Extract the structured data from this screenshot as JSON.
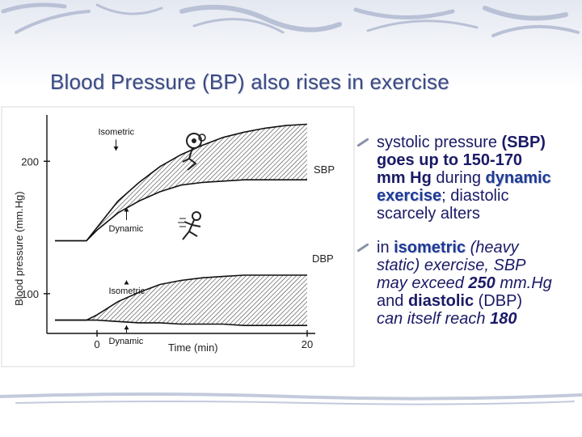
{
  "slide": {
    "title": "Blood Pressure (BP) also rises in exercise"
  },
  "chart_data": {
    "type": "area",
    "ylabel": "Blood pressure (mm.Hg)",
    "xlabel": "Time (min)",
    "xlim": [
      -4,
      20
    ],
    "ylim": [
      70,
      235
    ],
    "x_ticks": [
      "0",
      "20"
    ],
    "y_ticks": [
      "100",
      "200"
    ],
    "series": [
      {
        "name": "SBP",
        "x": [
          -4,
          -1,
          0,
          2,
          4,
          6,
          8,
          10,
          12,
          14,
          16,
          18,
          20
        ],
        "values": [
          140,
          140,
          150,
          170,
          184,
          196,
          205,
          212,
          218,
          222,
          225,
          227,
          228
        ]
      },
      {
        "name": "SBP",
        "x": [
          -4,
          -1,
          0,
          2,
          4,
          6,
          8,
          10,
          12,
          14,
          16,
          18,
          20
        ],
        "values": [
          140,
          140,
          148,
          161,
          170,
          177,
          182,
          184,
          185,
          186,
          186,
          186,
          186
        ]
      },
      {
        "name": "DBP",
        "x": [
          -4,
          -1,
          0,
          2,
          4,
          6,
          8,
          10,
          12,
          14,
          16,
          18,
          20
        ],
        "values": [
          80,
          80,
          84,
          94,
          101,
          107,
          110,
          112,
          113,
          114,
          114,
          114,
          114
        ]
      },
      {
        "name": "DBP",
        "x": [
          -4,
          -1,
          0,
          2,
          4,
          6,
          8,
          10,
          12,
          14,
          16,
          18,
          20
        ],
        "values": [
          80,
          80,
          80,
          79,
          78,
          78,
          77,
          77,
          77,
          76,
          76,
          76,
          76
        ]
      }
    ],
    "annotations": [
      {
        "text": "Isometric",
        "x": -0.5,
        "y": 220,
        "arrow_to": 208
      },
      {
        "text": "Dynamic",
        "x": 0.5,
        "y": 147,
        "arrow_to": 165
      },
      {
        "text": "Isometric",
        "x": 0.5,
        "y": 100,
        "arrow_to": 110
      },
      {
        "text": "Dynamic",
        "x": 0.5,
        "y": 62,
        "arrow_to": 76
      }
    ]
  },
  "bullets": [
    {
      "lines": [
        [
          {
            "t": "systolic pressure "
          },
          {
            "t": "(SBP)",
            "s": "b"
          }
        ],
        [
          {
            "t": "goes up to 150-170",
            "s": "b"
          }
        ],
        [
          {
            "t": "mm Hg",
            "s": "b"
          },
          {
            "t": " during "
          },
          {
            "t": "dynamic",
            "s": "hl"
          }
        ],
        [
          {
            "t": "exercise",
            "s": "hl"
          },
          {
            "t": "; diastolic"
          }
        ],
        [
          {
            "t": "scarcely alters"
          }
        ]
      ]
    },
    {
      "lines": [
        [
          {
            "t": "in "
          },
          {
            "t": "isometric",
            "s": "hl"
          },
          {
            "t": " (heavy",
            "s": "i"
          }
        ],
        [
          {
            "t": "static) exercise, SBP",
            "s": "i"
          }
        ],
        [
          {
            "t": "may exceed ",
            "s": "i"
          },
          {
            "t": "250",
            "s": "b i"
          },
          {
            "t": " mm.Hg",
            "s": "i"
          }
        ],
        [
          {
            "t": "and "
          },
          {
            "t": "diastolic",
            "s": "b"
          },
          {
            "t": " (DBP)"
          }
        ],
        [
          {
            "t": "can itself reach ",
            "s": "i"
          },
          {
            "t": "180",
            "s": "b i"
          }
        ]
      ]
    }
  ]
}
